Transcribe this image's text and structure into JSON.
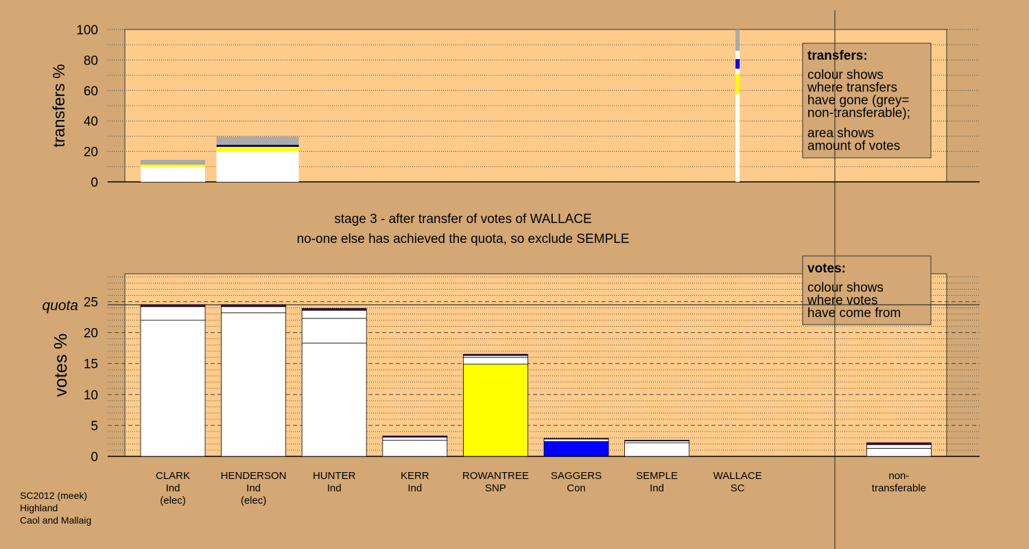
{
  "chart_data": [
    {
      "type": "bar",
      "stacked": true,
      "ylabel": "transfers %",
      "ylim": [
        0,
        100
      ],
      "yticks": [
        0,
        20,
        40,
        60,
        80,
        100
      ],
      "minor_yticks": [
        10,
        30,
        50,
        70,
        90
      ],
      "stacks": [
        [
          {
            "value": 9.9,
            "color": "#ffffff"
          },
          {
            "value": 1.4,
            "color": "#ffff00"
          },
          {
            "value": 3.1,
            "color": "#aaaaaa"
          }
        ],
        [
          {
            "value": 19.8,
            "color": "#ffffff"
          },
          {
            "value": 3.2,
            "color": "#ffff00"
          },
          {
            "value": 1.3,
            "color": "#000066"
          },
          {
            "value": 5.4,
            "color": "#aaaaaa"
          }
        ],
        null,
        null,
        null,
        null,
        null,
        null,
        null,
        null
      ],
      "share_column": [
        {
          "value": 57.7,
          "color": "#ffffff"
        },
        {
          "value": 13,
          "color": "#ffff00"
        },
        {
          "value": 3.6,
          "color": "#ffffff"
        },
        {
          "value": 6.3,
          "color": "#0000ff"
        },
        {
          "value": 5.4,
          "color": "#ffffff"
        },
        {
          "value": 14,
          "color": "#aaaaaa"
        }
      ],
      "legend": {
        "title": "transfers:",
        "paragraphs": [
          [
            "colour shows",
            "where transfers",
            "have gone (grey=",
            "non-transferable);"
          ],
          [
            "area shows",
            "amount of votes"
          ]
        ]
      }
    },
    {
      "type": "bar",
      "stacked": true,
      "title": [
        "stage 3 - after transfer of votes of WALLACE",
        "no-one else has achieved the quota, so exclude SEMPLE"
      ],
      "ylabel": "votes %",
      "ylim": [
        0,
        29.5
      ],
      "yticks": [
        0,
        5,
        10,
        15,
        20,
        25
      ],
      "minor_yticks": [
        1,
        2,
        3,
        4,
        6,
        7,
        8,
        9,
        11,
        12,
        13,
        14,
        16,
        17,
        18,
        19,
        21,
        22,
        23,
        24,
        26,
        27,
        28,
        29
      ],
      "quota": {
        "label": "quota",
        "value": 24.5
      },
      "categories": [
        [
          "CLARK",
          "Ind",
          "(elec)"
        ],
        [
          "HENDERSON",
          "Ind",
          "(elec)"
        ],
        [
          "HUNTER",
          "Ind"
        ],
        [
          "KERR",
          "Ind"
        ],
        [
          "ROWANTREE",
          "SNP"
        ],
        [
          "SAGGERS",
          "Con"
        ],
        [
          "SEMPLE",
          "Ind"
        ],
        [
          "WALLACE",
          "SC"
        ],
        null,
        [
          "non-",
          "transferable"
        ]
      ],
      "series": [
        {
          "colors": [
            "#ffffff",
            "#ffffff",
            "#ffffff",
            "#ffffff",
            "#ffff00",
            "#0000ff",
            "#ffffff",
            "#ffffff",
            null,
            "#ffffff"
          ],
          "values": [
            22.0,
            23.2,
            18.3,
            2.6,
            14.9,
            2.4,
            2.2,
            0,
            null,
            1.3
          ]
        },
        {
          "color": "#ffffff",
          "values": [
            2.2,
            1.0,
            4.0,
            0.5,
            1.1,
            0.4,
            0.3,
            null,
            null,
            0.6
          ]
        },
        {
          "color": "#ffffff",
          "values": [
            null,
            null,
            1.3,
            null,
            0.3,
            null,
            null,
            null,
            null,
            null
          ]
        },
        {
          "color": "#400070",
          "values": [
            0.3,
            0.3,
            0.3,
            0.2,
            0.2,
            0.1,
            0.1,
            null,
            null,
            0.3
          ]
        }
      ],
      "legend": {
        "title": "votes:",
        "paragraphs": [
          [
            "colour shows",
            "where votes",
            "have come from"
          ]
        ]
      }
    }
  ],
  "footer": [
    "SC2012 (meek)",
    "Highland",
    "Caol and Mallaig"
  ]
}
